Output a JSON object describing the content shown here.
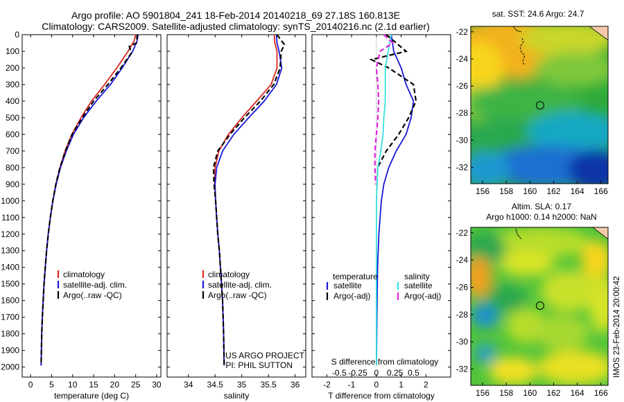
{
  "header": {
    "line1": "Argo profile: AO 5901804_241 18-Feb-2014 20140218_69 27.18S 160.813E",
    "line2": "Climatology: CARS2009. Satellite-adjusted climatology: synTS_20140216.nc (2.1d earlier)"
  },
  "colors": {
    "climatology": "#d9261c",
    "satellite": "#1515d8",
    "argo": "#000000",
    "salinity_sat": "#33e0e0",
    "salinity_argo": "#e020e0"
  },
  "chart_data": [
    {
      "type": "line",
      "panel": "temperature",
      "xlabel": "temperature (deg C)",
      "ylabel": "",
      "xlim": [
        -2,
        31
      ],
      "ylim": [
        2060,
        0
      ],
      "y_inverted": true,
      "xticks": [
        0,
        5,
        10,
        15,
        20,
        25,
        30
      ],
      "yticks": [
        0,
        100,
        200,
        300,
        400,
        500,
        600,
        700,
        800,
        900,
        1000,
        1100,
        1200,
        1300,
        1400,
        1500,
        1600,
        1700,
        1800,
        1900,
        2000
      ],
      "legend": [
        "climatology",
        "satellite-adj. clim.",
        "Argo(..raw -QC)"
      ],
      "series": [
        {
          "name": "climatology",
          "style": "solid",
          "color": "#d9261c",
          "x": [
            25.0,
            24.6,
            23.2,
            20.5,
            17.6,
            14.5,
            12.0,
            9.8,
            8.2,
            7.0,
            6.0,
            5.3,
            4.7,
            4.2,
            3.8,
            3.5,
            3.2,
            3.0,
            2.8,
            2.65,
            2.5
          ],
          "y": [
            0,
            40,
            100,
            200,
            300,
            400,
            500,
            600,
            700,
            800,
            900,
            1000,
            1100,
            1200,
            1300,
            1400,
            1500,
            1600,
            1700,
            1800,
            1990
          ]
        },
        {
          "name": "satellite-adj. clim.",
          "style": "solid",
          "color": "#1515d8",
          "x": [
            25.6,
            25.3,
            24.3,
            21.8,
            19.0,
            15.6,
            12.6,
            10.2,
            8.5,
            7.1,
            6.1,
            5.3,
            4.7,
            4.2,
            3.8,
            3.5,
            3.2,
            3.0,
            2.8,
            2.65,
            2.5
          ],
          "y": [
            0,
            40,
            100,
            200,
            300,
            400,
            500,
            600,
            700,
            800,
            900,
            1000,
            1100,
            1200,
            1300,
            1400,
            1500,
            1600,
            1700,
            1800,
            1990
          ]
        },
        {
          "name": "Argo(..raw -QC)",
          "style": "dashed",
          "color": "#000000",
          "x": [
            25.4,
            25.2,
            23.5,
            24.0,
            21.5,
            18.4,
            15.0,
            12.3,
            9.9,
            8.3,
            7.0,
            6.0,
            5.3,
            4.7,
            4.2,
            3.8,
            3.5,
            3.2,
            3.0,
            2.8,
            2.65,
            2.5
          ],
          "y": [
            0,
            50,
            70,
            110,
            200,
            300,
            400,
            500,
            600,
            700,
            800,
            900,
            1000,
            1100,
            1200,
            1300,
            1400,
            1500,
            1600,
            1700,
            1800,
            1990
          ]
        }
      ]
    },
    {
      "type": "line",
      "panel": "salinity",
      "xlabel": "salinity",
      "xlim": [
        33.6,
        36.2
      ],
      "ylim": [
        2060,
        0
      ],
      "y_inverted": true,
      "xticks": [
        34,
        34.5,
        35,
        35.5,
        36
      ],
      "legend": [
        "climatology",
        "satellite-adj. clim.",
        "Argo(..raw -QC)"
      ],
      "annotation": [
        "US ARGO PROJECT",
        "PI: PHIL SUTTON"
      ],
      "series": [
        {
          "name": "climatology",
          "style": "solid",
          "color": "#d9261c",
          "x": [
            35.61,
            35.62,
            35.66,
            35.66,
            35.55,
            35.28,
            35.0,
            34.75,
            34.57,
            34.5,
            34.49,
            34.51,
            34.53,
            34.55,
            34.58,
            34.6,
            34.62,
            34.64,
            34.65,
            34.66,
            34.67
          ],
          "y": [
            0,
            50,
            100,
            200,
            300,
            400,
            500,
            600,
            700,
            800,
            900,
            1000,
            1100,
            1200,
            1300,
            1400,
            1500,
            1600,
            1700,
            1800,
            1990
          ]
        },
        {
          "name": "satellite-adj. clim.",
          "style": "solid",
          "color": "#1515d8",
          "x": [
            35.65,
            35.66,
            35.7,
            35.75,
            35.65,
            35.42,
            35.13,
            34.85,
            34.64,
            34.53,
            34.5,
            34.51,
            34.53,
            34.55,
            34.58,
            34.6,
            34.62,
            34.64,
            34.65,
            34.66,
            34.67
          ],
          "y": [
            0,
            50,
            100,
            200,
            300,
            400,
            500,
            600,
            700,
            800,
            900,
            1000,
            1100,
            1200,
            1300,
            1400,
            1500,
            1600,
            1700,
            1800,
            1990
          ]
        },
        {
          "name": "Argo(..raw -QC)",
          "style": "dashed",
          "color": "#000000",
          "x": [
            35.66,
            35.8,
            35.74,
            35.72,
            35.6,
            35.35,
            35.05,
            34.78,
            34.55,
            34.47,
            34.48,
            34.51,
            34.53,
            34.55,
            34.58,
            34.6,
            34.62,
            34.64,
            34.65,
            34.66,
            34.67
          ],
          "y": [
            0,
            60,
            100,
            200,
            300,
            400,
            500,
            600,
            700,
            800,
            900,
            1000,
            1100,
            1200,
            1300,
            1400,
            1500,
            1600,
            1700,
            1800,
            1990
          ]
        }
      ]
    },
    {
      "type": "line",
      "panel": "difference",
      "xlabel": "T difference from climatology",
      "xlabel_top": "S difference from climatology",
      "xlim": [
        -2.6,
        3.0
      ],
      "ylim": [
        2060,
        0
      ],
      "y_inverted": true,
      "xticks": [
        -2,
        -1,
        0,
        1,
        2
      ],
      "xticks_s": [
        -0.5,
        -0.25,
        0,
        0.25,
        0.5
      ],
      "legend_titles": [
        "temperature",
        "salinity"
      ],
      "legend": [
        "satellite",
        "Argo(-adj)",
        "satellite",
        "Argo(-adj)"
      ],
      "series": [
        {
          "name": "temperature satellite",
          "quantity": "T",
          "style": "solid",
          "color": "#1515d8",
          "x": [
            0.6,
            0.7,
            1.0,
            1.2,
            1.5,
            1.4,
            1.2,
            0.8,
            0.5,
            0.3,
            0.2,
            0.1,
            0.05,
            0.02,
            0.0
          ],
          "y": [
            0,
            100,
            200,
            300,
            400,
            500,
            600,
            700,
            800,
            900,
            1000,
            1200,
            1400,
            1700,
            1990
          ]
        },
        {
          "name": "temperature Argo(-adj)",
          "quantity": "T",
          "style": "dashed",
          "color": "#000000",
          "x": [
            0.4,
            1.2,
            -0.2,
            0.5,
            1.0,
            1.5,
            1.6,
            1.3,
            0.9,
            0.4,
            0.05
          ],
          "y": [
            0,
            100,
            150,
            200,
            250,
            300,
            400,
            500,
            600,
            700,
            800
          ]
        },
        {
          "name": "salinity satellite",
          "quantity": "S",
          "style": "solid",
          "color": "#33e0e0",
          "x": [
            0.2,
            0.16,
            0.12,
            0.12,
            0.12,
            0.1,
            0.09,
            0.06,
            0.02,
            0.0,
            0.0,
            0.0
          ],
          "y": [
            0,
            100,
            200,
            300,
            400,
            500,
            600,
            700,
            800,
            1000,
            1500,
            1990
          ]
        },
        {
          "name": "salinity Argo(-adj)",
          "quantity": "S",
          "style": "dashed",
          "color": "#e020e0",
          "x": [
            0.1,
            0.22,
            0.05,
            0.0,
            0.02,
            0.03,
            0.02,
            0.0,
            -0.02,
            -0.02,
            -0.01
          ],
          "y": [
            0,
            50,
            100,
            200,
            300,
            400,
            500,
            600,
            700,
            800,
            900
          ]
        }
      ]
    }
  ],
  "maps": [
    {
      "title_lines": [
        "sat. SST: 24.6 Argo: 24.7"
      ],
      "lon_ticks": [
        "156",
        "158",
        "160",
        "162",
        "164",
        "166"
      ],
      "lat_ticks": [
        "-22",
        "-24",
        "-26",
        "-28",
        "-30",
        "-32"
      ]
    },
    {
      "title_lines": [
        "Altim. SLA: 0.17",
        "Argo h1000: 0.14 h2000: NaN"
      ],
      "lon_ticks": [
        "156",
        "158",
        "160",
        "162",
        "164",
        "166"
      ],
      "lat_ticks": [
        "-22",
        "-24",
        "-26",
        "-28",
        "-30",
        "-32"
      ]
    }
  ],
  "map_float_position": {
    "lon": 160.813,
    "lat": -27.18
  },
  "side_label": "IMOS 23-Feb-2014 20:00:42"
}
